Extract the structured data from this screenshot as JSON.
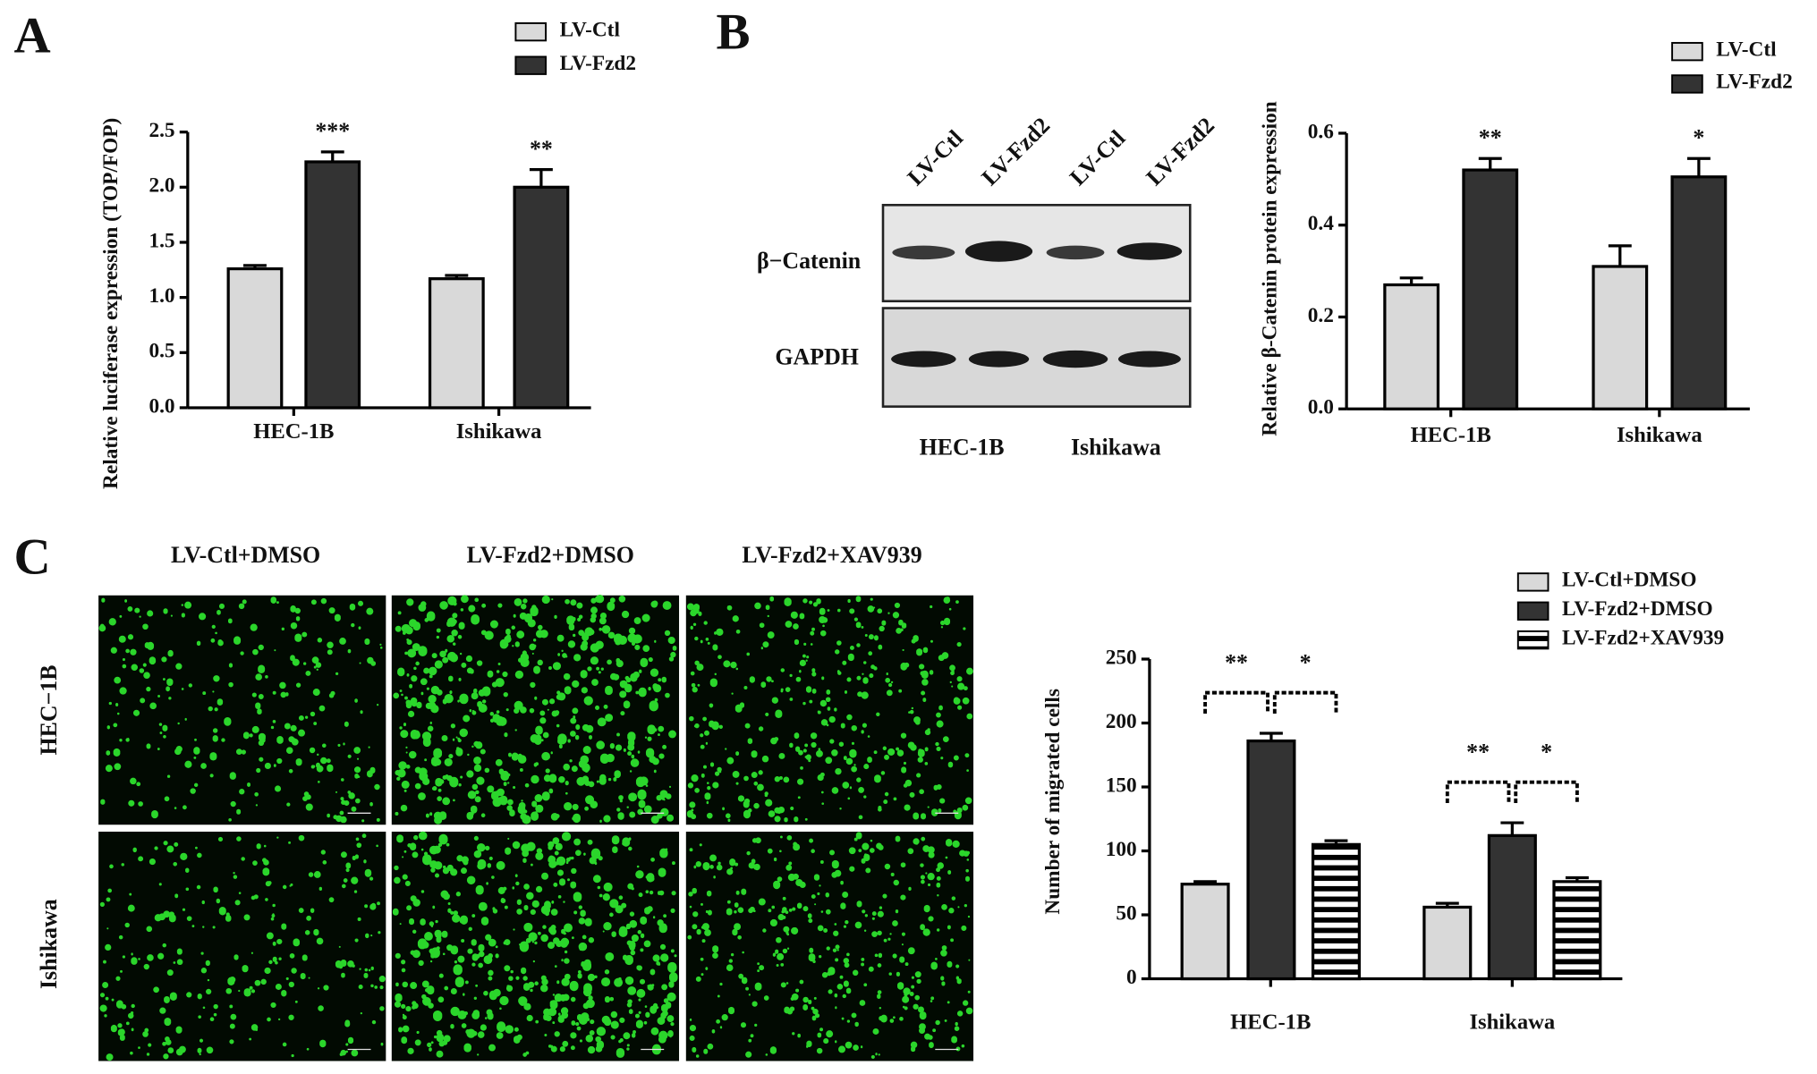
{
  "chart_data": [
    {
      "type": "bar",
      "label": "A",
      "ylabel": "Relative  luciferase expression (TOP/FOP)",
      "categories": [
        "HEC-1B",
        "Ishikawa"
      ],
      "series": [
        {
          "name": "LV-Ctl",
          "color": "#d9d9d9",
          "values": [
            1.26,
            1.17
          ],
          "errors": [
            0.03,
            0.03
          ],
          "stars": [
            null,
            null
          ]
        },
        {
          "name": "LV-Fzd2",
          "color": "#333333",
          "values": [
            2.23,
            2.0
          ],
          "errors": [
            0.09,
            0.16
          ],
          "stars": [
            "***",
            "**"
          ]
        }
      ],
      "ylim": [
        0,
        2.5
      ],
      "yticks": [
        {
          "value": 0,
          "label": "0.0"
        },
        0.5,
        {
          "value": 1,
          "label": "1.0"
        },
        1.5,
        {
          "value": 2,
          "label": "2.0"
        },
        2.5
      ]
    },
    {
      "type": "bar",
      "label": "B",
      "ylabel": "Relative β-Catenin protein expression",
      "categories": [
        "HEC-1B",
        "Ishikawa"
      ],
      "series": [
        {
          "name": "LV-Ctl",
          "color": "#d9d9d9",
          "values": [
            0.27,
            0.31
          ],
          "errors": [
            0.015,
            0.045
          ],
          "stars": [
            null,
            null
          ]
        },
        {
          "name": "LV-Fzd2",
          "color": "#333333",
          "values": [
            0.52,
            0.505
          ],
          "errors": [
            0.025,
            0.04
          ],
          "stars": [
            "**",
            "*"
          ]
        }
      ],
      "ylim": [
        0,
        0.6
      ],
      "yticks": [
        {
          "value": 0,
          "label": "0.0"
        },
        0.2,
        0.4,
        0.6
      ]
    },
    {
      "type": "bar",
      "label": "C",
      "ylabel": "Number of migrated cells",
      "categories": [
        "HEC-1B",
        "Ishikawa"
      ],
      "series": [
        {
          "name": "LV-Ctl+DMSO",
          "color": "#d9d9d9",
          "values": [
            74,
            56
          ],
          "errors": [
            2,
            3
          ]
        },
        {
          "name": "LV-Fzd2+DMSO",
          "color": "#333333",
          "values": [
            186,
            112
          ],
          "errors": [
            6,
            10
          ]
        },
        {
          "name": "LV-Fzd2+XAV939",
          "color": "#ffffff",
          "pattern": "horizontal-stripes",
          "values": [
            105,
            76
          ],
          "errors": [
            3,
            3
          ]
        }
      ],
      "significance": [
        [
          "**",
          "*"
        ],
        [
          "**",
          "*"
        ]
      ],
      "ylim": [
        0,
        250
      ],
      "yticks": [
        0,
        50,
        100,
        150,
        200,
        250
      ]
    }
  ],
  "blot": {
    "lanes": [
      "LV-Ctl",
      "LV-Fzd2",
      "LV-Ctl",
      "LV-Fzd2"
    ],
    "rows": [
      "β−Catenin",
      "GAPDH"
    ],
    "groups": [
      "HEC-1B",
      "Ishikawa"
    ]
  },
  "micrographs": {
    "columns": [
      "LV-Ctl+DMSO",
      "LV-Fzd2+DMSO",
      "LV-Fzd2+XAV939"
    ],
    "rows": [
      "HEC−1B",
      "Ishikawa"
    ]
  }
}
